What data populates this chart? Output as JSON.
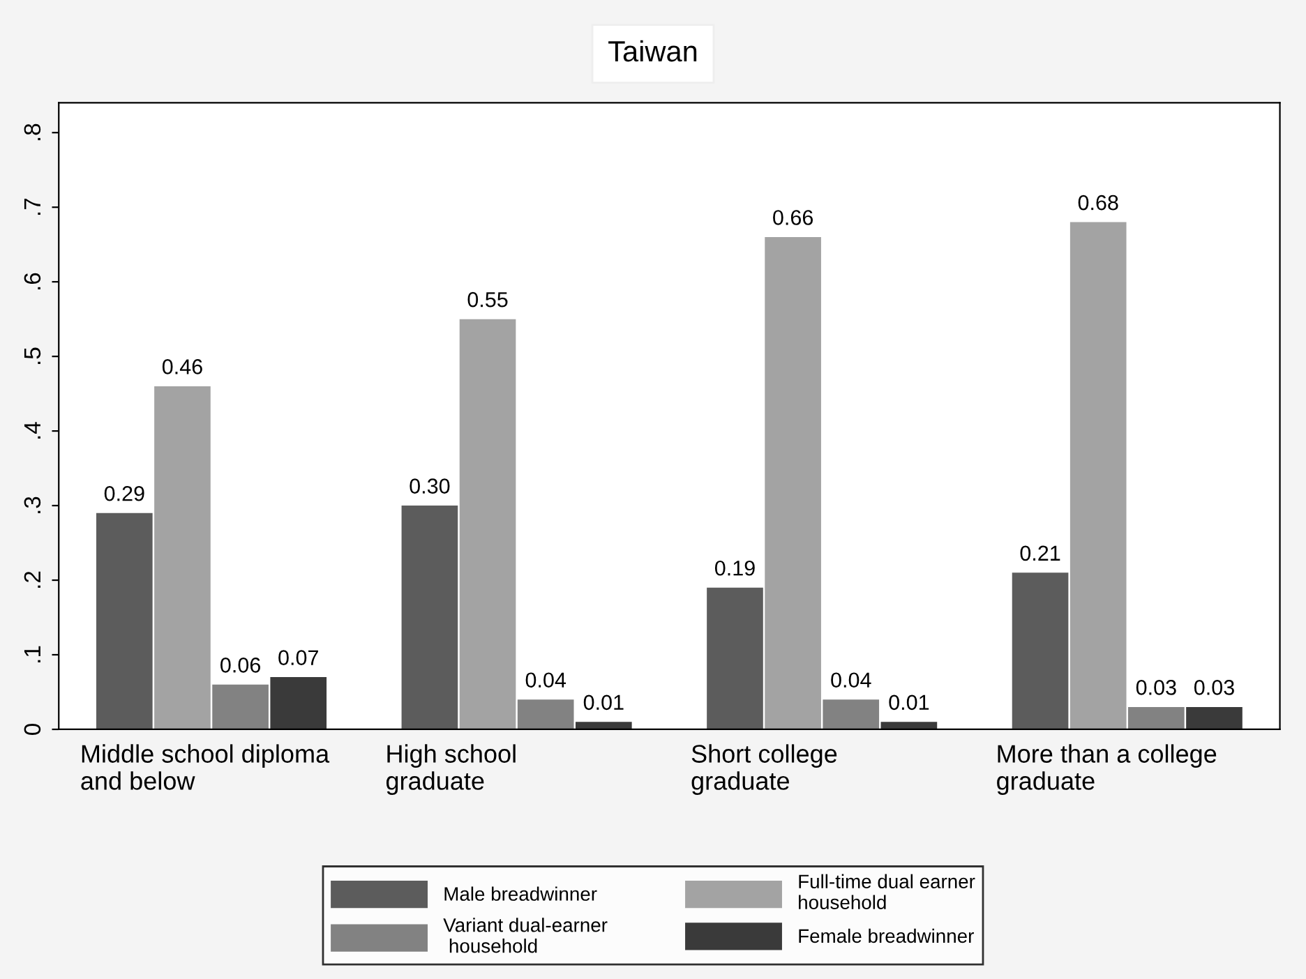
{
  "chart_data": {
    "type": "bar",
    "title": "Taiwan",
    "categories": [
      "Middle school diploma\nand below",
      "High school\ngraduate",
      "Short college\ngraduate",
      "More than a college\ngraduate"
    ],
    "series": [
      {
        "name": "Male breadwinner",
        "color": "#5c5c5c",
        "values": [
          0.29,
          0.3,
          0.19,
          0.21
        ],
        "value_labels": [
          "0.29",
          "0.30",
          "0.19",
          "0.21"
        ]
      },
      {
        "name": "Full-time dual earner\nhousehold",
        "color": "#a3a3a3",
        "values": [
          0.46,
          0.55,
          0.66,
          0.68
        ],
        "value_labels": [
          "0.46",
          "0.55",
          "0.66",
          "0.68"
        ]
      },
      {
        "name": "Variant dual-earner\n household",
        "color": "#828282",
        "values": [
          0.06,
          0.04,
          0.04,
          0.03
        ],
        "value_labels": [
          "0.06",
          "0.04",
          "0.04",
          "0.03"
        ]
      },
      {
        "name": "Female breadwinner",
        "color": "#3a3a3a",
        "values": [
          0.07,
          0.01,
          0.01,
          0.03
        ],
        "value_labels": [
          "0.07",
          "0.01",
          "0.01",
          "0.03"
        ]
      }
    ],
    "ylim": [
      0,
      0.84
    ],
    "yticks": [
      {
        "value": 0,
        "label": "0"
      },
      {
        "value": 0.1,
        "label": ".1"
      },
      {
        "value": 0.2,
        "label": ".2"
      },
      {
        "value": 0.3,
        "label": ".3"
      },
      {
        "value": 0.4,
        "label": ".4"
      },
      {
        "value": 0.5,
        "label": ".5"
      },
      {
        "value": 0.6,
        "label": ".6"
      },
      {
        "value": 0.7,
        "label": ".7"
      },
      {
        "value": 0.8,
        "label": ".8"
      }
    ],
    "legend": "bottom",
    "grid": false
  }
}
